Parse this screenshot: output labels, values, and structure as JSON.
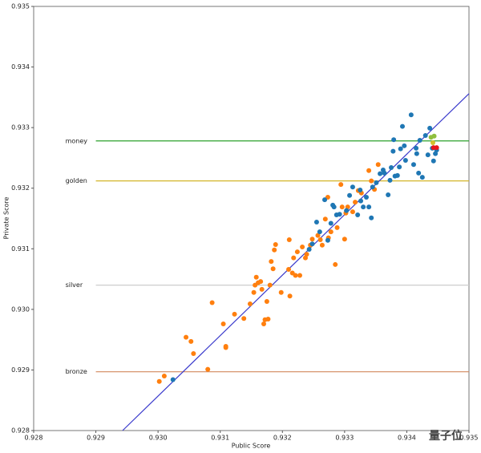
{
  "chart_data": {
    "type": "scatter",
    "xlabel": "Public Score",
    "ylabel": "Private Score",
    "xlim": [
      0.928,
      0.935
    ],
    "ylim": [
      0.928,
      0.935
    ],
    "xticks": [
      0.928,
      0.929,
      {
        "value": 0.93,
        "label": "0.930"
      },
      0.931,
      0.932,
      0.933,
      0.934,
      0.935
    ],
    "yticks": [
      0.928,
      0.929,
      {
        "value": 0.93,
        "label": "0.930"
      },
      0.931,
      0.932,
      0.933,
      0.934,
      0.935
    ],
    "series": [
      {
        "color": "#ff7f0e",
        "x": [
          0.93002,
          0.9301,
          0.93045,
          0.93053,
          0.93057,
          0.9308,
          0.93087,
          0.93105,
          0.93109,
          0.93109,
          0.93123,
          0.93138,
          0.93148,
          0.93154,
          0.93156,
          0.93158,
          0.93161,
          0.93165,
          0.93167,
          0.9317,
          0.93172,
          0.93175,
          0.93177,
          0.9318,
          0.93182,
          0.93185,
          0.93187,
          0.93189,
          0.93198,
          0.9321,
          0.93211,
          0.93212,
          0.93216,
          0.93218,
          0.93221,
          0.93224,
          0.93228,
          0.93232,
          0.93237,
          0.93239,
          0.93245,
          0.93248,
          0.93257,
          0.93261,
          0.93264,
          0.93269,
          0.93273,
          0.93274,
          0.93278,
          0.93285,
          0.93288,
          0.93294,
          0.93296,
          0.933,
          0.93302,
          0.93305,
          0.93313,
          0.93317,
          0.93322,
          0.93327,
          0.93339,
          0.93343,
          0.93348,
          0.93354
        ],
        "values": [
          0.92881,
          0.9289,
          0.92954,
          0.92947,
          0.92927,
          0.92901,
          0.93011,
          0.92976,
          0.92939,
          0.92937,
          0.92992,
          0.92985,
          0.93009,
          0.93028,
          0.9304,
          0.93053,
          0.93044,
          0.93046,
          0.93033,
          0.92976,
          0.92983,
          0.93013,
          0.92984,
          0.9304,
          0.93079,
          0.93067,
          0.93098,
          0.93107,
          0.93028,
          0.93066,
          0.93115,
          0.93022,
          0.9306,
          0.93085,
          0.93056,
          0.93095,
          0.93056,
          0.93103,
          0.93085,
          0.93091,
          0.93106,
          0.93116,
          0.93122,
          0.93115,
          0.93106,
          0.93149,
          0.93185,
          0.93118,
          0.93128,
          0.93074,
          0.93135,
          0.93206,
          0.93169,
          0.93116,
          0.93159,
          0.93169,
          0.93161,
          0.93177,
          0.93196,
          0.93192,
          0.93229,
          0.93212,
          0.93198,
          0.93239
        ]
      },
      {
        "color": "#1f77b4",
        "x": [
          0.93024,
          0.93243,
          0.93248,
          0.93255,
          0.9326,
          0.93268,
          0.93273,
          0.93278,
          0.93281,
          0.93283,
          0.93287,
          0.93292,
          0.93303,
          0.93308,
          0.93313,
          0.93321,
          0.93325,
          0.93326,
          0.9333,
          0.93335,
          0.93339,
          0.93343,
          0.93345,
          0.93351,
          0.93357,
          0.93362,
          0.93364,
          0.9337,
          0.93373,
          0.93375,
          0.93378,
          0.93379,
          0.93381,
          0.93385,
          0.93388,
          0.9339,
          0.93393,
          0.93396,
          0.93398,
          0.93407,
          0.93411,
          0.93415,
          0.93416,
          0.93419,
          0.93421,
          0.93425,
          0.9343,
          0.93434,
          0.93437,
          0.93441,
          0.93443,
          0.93446,
          0.93448
        ],
        "values": [
          0.92884,
          0.93099,
          0.93108,
          0.93144,
          0.93128,
          0.93181,
          0.93114,
          0.93142,
          0.93172,
          0.93169,
          0.93156,
          0.93157,
          0.93163,
          0.93188,
          0.93202,
          0.93156,
          0.93197,
          0.93179,
          0.93169,
          0.93185,
          0.93169,
          0.93151,
          0.93202,
          0.93209,
          0.93224,
          0.9323,
          0.93225,
          0.93189,
          0.93213,
          0.93234,
          0.93261,
          0.9328,
          0.9322,
          0.93221,
          0.93235,
          0.93265,
          0.93302,
          0.9327,
          0.93246,
          0.93321,
          0.93239,
          0.93266,
          0.93257,
          0.93225,
          0.93279,
          0.93218,
          0.93287,
          0.93255,
          0.93299,
          0.93266,
          0.93245,
          0.93257,
          0.93263
        ]
      },
      {
        "color": "#8fbf3f",
        "x": [
          0.93439,
          0.93444
        ],
        "values": [
          0.93284,
          0.93286
        ]
      },
      {
        "color": "#d4c02a",
        "x": [
          0.93442
        ],
        "values": [
          0.93275
        ]
      },
      {
        "color": "#e8141a",
        "x": [
          0.93443,
          0.93448
        ],
        "values": [
          0.93267,
          0.93267
        ]
      }
    ],
    "hlines": [
      {
        "label": "money",
        "value": 0.93278,
        "color": "#2ca02c"
      },
      {
        "label": "golden",
        "value": 0.93212,
        "color": "#d4b52a"
      },
      {
        "label": "silver",
        "value": 0.9304,
        "color": "#cccccc"
      },
      {
        "label": "bronze",
        "value": 0.92897,
        "color": "#d2885e"
      }
    ],
    "hline_start": 0.929,
    "diagonal": {
      "x": [
        0.92943,
        0.935
      ],
      "y": [
        0.928,
        0.93356
      ],
      "color": "#3a3acc"
    },
    "watermark": "量子位"
  }
}
